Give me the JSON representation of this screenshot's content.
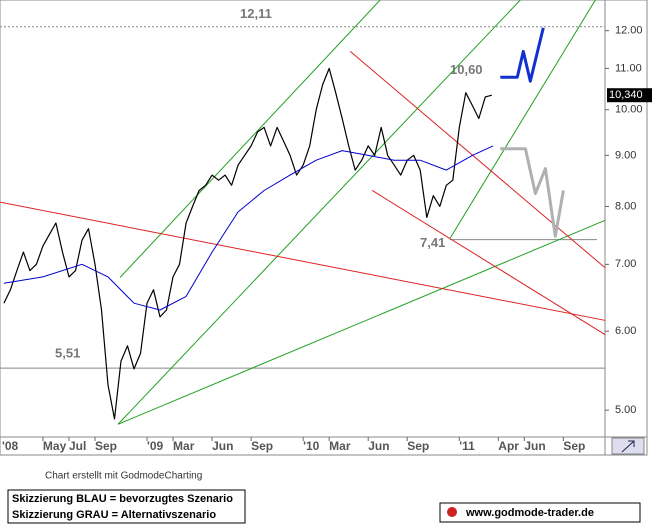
{
  "chart_data": {
    "type": "line",
    "log_scale": true,
    "xlim": [
      0.7,
      47.2
    ],
    "ylim": [
      4.7,
      12.88
    ],
    "xticks": [
      {
        "value": 0,
        "label": "'08"
      },
      {
        "value": 4,
        "label": "May"
      },
      {
        "value": 6,
        "label": "Jul"
      },
      {
        "value": 8,
        "label": "Sep"
      },
      {
        "value": 12,
        "label": "'09"
      },
      {
        "value": 14,
        "label": "Mar"
      },
      {
        "value": 17,
        "label": "Jun"
      },
      {
        "value": 20,
        "label": "Sep"
      },
      {
        "value": 24,
        "label": "'10"
      },
      {
        "value": 26,
        "label": "Mar"
      },
      {
        "value": 29,
        "label": "Jun"
      },
      {
        "value": 32,
        "label": "Sep"
      },
      {
        "value": 36,
        "label": "'11"
      },
      {
        "value": 39,
        "label": "Apr"
      },
      {
        "value": 41,
        "label": "Jun"
      },
      {
        "value": 44,
        "label": "Sep"
      }
    ],
    "yticks": [
      {
        "value": 5,
        "label": "5.00"
      },
      {
        "value": 6,
        "label": "6.00"
      },
      {
        "value": 7,
        "label": "7.00"
      },
      {
        "value": 8,
        "label": "8.00"
      },
      {
        "value": 9,
        "label": "9.00"
      },
      {
        "value": 10,
        "label": "10.00"
      },
      {
        "value": 11,
        "label": "11.00"
      },
      {
        "value": 12,
        "label": "12.00"
      }
    ],
    "series": [
      {
        "color": "#000000",
        "x": [
          1,
          1.5,
          2,
          2.5,
          3,
          3.5,
          4,
          4.5,
          5,
          5.5,
          6,
          6.5,
          7,
          7.5,
          8,
          8.5,
          9,
          9.5,
          10,
          10.5,
          11,
          11.5,
          12,
          12.5,
          13,
          13.5,
          14,
          14.5,
          15,
          15.5,
          16,
          16.5,
          17,
          17.5,
          18,
          18.5,
          19,
          19.5,
          20,
          20.5,
          21,
          21.5,
          22,
          22.5,
          23,
          23.5,
          24,
          24.5,
          25,
          25.5,
          26,
          26.5,
          27,
          27.5,
          28,
          28.5,
          29,
          29.5,
          30,
          30.5,
          31,
          31.5,
          32,
          32.5,
          33,
          33.5,
          34,
          34.5,
          35,
          35.5,
          36,
          36.5,
          37,
          37.5,
          38,
          38.5
        ],
        "values": [
          6.4,
          6.6,
          6.9,
          7.2,
          6.9,
          7.0,
          7.3,
          7.5,
          7.7,
          7.2,
          6.8,
          6.9,
          7.4,
          7.6,
          7.0,
          6.3,
          5.3,
          4.9,
          5.6,
          5.8,
          5.5,
          5.7,
          6.4,
          6.6,
          6.2,
          6.3,
          6.8,
          7.0,
          7.7,
          8.0,
          8.3,
          8.4,
          8.6,
          8.5,
          8.6,
          8.4,
          8.8,
          9.0,
          9.2,
          9.5,
          9.6,
          9.2,
          9.6,
          9.3,
          9.0,
          8.6,
          8.8,
          9.2,
          10.0,
          10.6,
          11.0,
          10.4,
          9.8,
          9.2,
          8.7,
          8.9,
          9.2,
          9.0,
          9.6,
          9.0,
          8.8,
          8.6,
          8.9,
          9.0,
          8.7,
          7.8,
          8.2,
          8.0,
          8.4,
          8.5,
          9.6,
          10.4,
          10.1,
          9.8,
          10.3,
          10.34
        ]
      },
      {
        "color": "#0000cc",
        "x": [
          1,
          4,
          7,
          9,
          11,
          13,
          15,
          17,
          19,
          21,
          23,
          25,
          27,
          29,
          31,
          33,
          35,
          37,
          38.6
        ],
        "values": [
          6.7,
          6.8,
          7.0,
          6.8,
          6.4,
          6.3,
          6.5,
          7.2,
          7.9,
          8.3,
          8.6,
          8.9,
          9.1,
          9.0,
          8.9,
          8.9,
          8.7,
          9.0,
          9.2
        ]
      },
      {
        "color": "#1030d0",
        "x": [
          39.15,
          40.46,
          40.92,
          41.46,
          42.46
        ],
        "values": [
          10.78,
          10.78,
          11.44,
          10.68,
          12.08
        ]
      },
      {
        "color": "#b0b0b0",
        "x": [
          39.15,
          41.08,
          41.85,
          42.62,
          43.38,
          44.0
        ],
        "values": [
          9.14,
          9.14,
          8.24,
          8.73,
          7.47,
          8.3
        ]
      }
    ],
    "trend_lines": [
      {
        "color": "#22a022",
        "x": [
          9.92,
          29.92
        ],
        "values": [
          6.79,
          12.88
        ]
      },
      {
        "color": "#22a022",
        "x": [
          9.77,
          40.69
        ],
        "values": [
          4.84,
          12.88
        ]
      },
      {
        "color": "#22a022",
        "x": [
          9.77,
          47.23
        ],
        "values": [
          4.84,
          7.75
        ]
      },
      {
        "color": "#22a022",
        "x": [
          35.31,
          46.46
        ],
        "values": [
          7.44,
          12.88
        ]
      },
      {
        "color": "#dd2222",
        "x": [
          0.69,
          47.23
        ],
        "values": [
          8.08,
          6.15
        ]
      },
      {
        "color": "#dd2222",
        "x": [
          27.62,
          47.23
        ],
        "values": [
          11.44,
          6.94
        ]
      },
      {
        "color": "#dd2222",
        "x": [
          29.31,
          47.23
        ],
        "values": [
          8.3,
          5.95
        ]
      }
    ],
    "levels": [
      {
        "value": 12.11,
        "label": "12,11"
      },
      {
        "value": 5.51,
        "label": "5,51"
      },
      {
        "value": 7.41,
        "label": "7,41"
      },
      {
        "value": 10.6,
        "label": "10,60"
      }
    ],
    "last_price": {
      "value": 10.34,
      "label": "10,340"
    },
    "credit": "Chart erstellt mit GodmodeCharting",
    "legend_notes": [
      "Skizzierung BLAU = bevorzugtes Szenario",
      "Skizzierung GRAU = Alternativszenario"
    ],
    "website": "www.godmode-trader.de"
  }
}
